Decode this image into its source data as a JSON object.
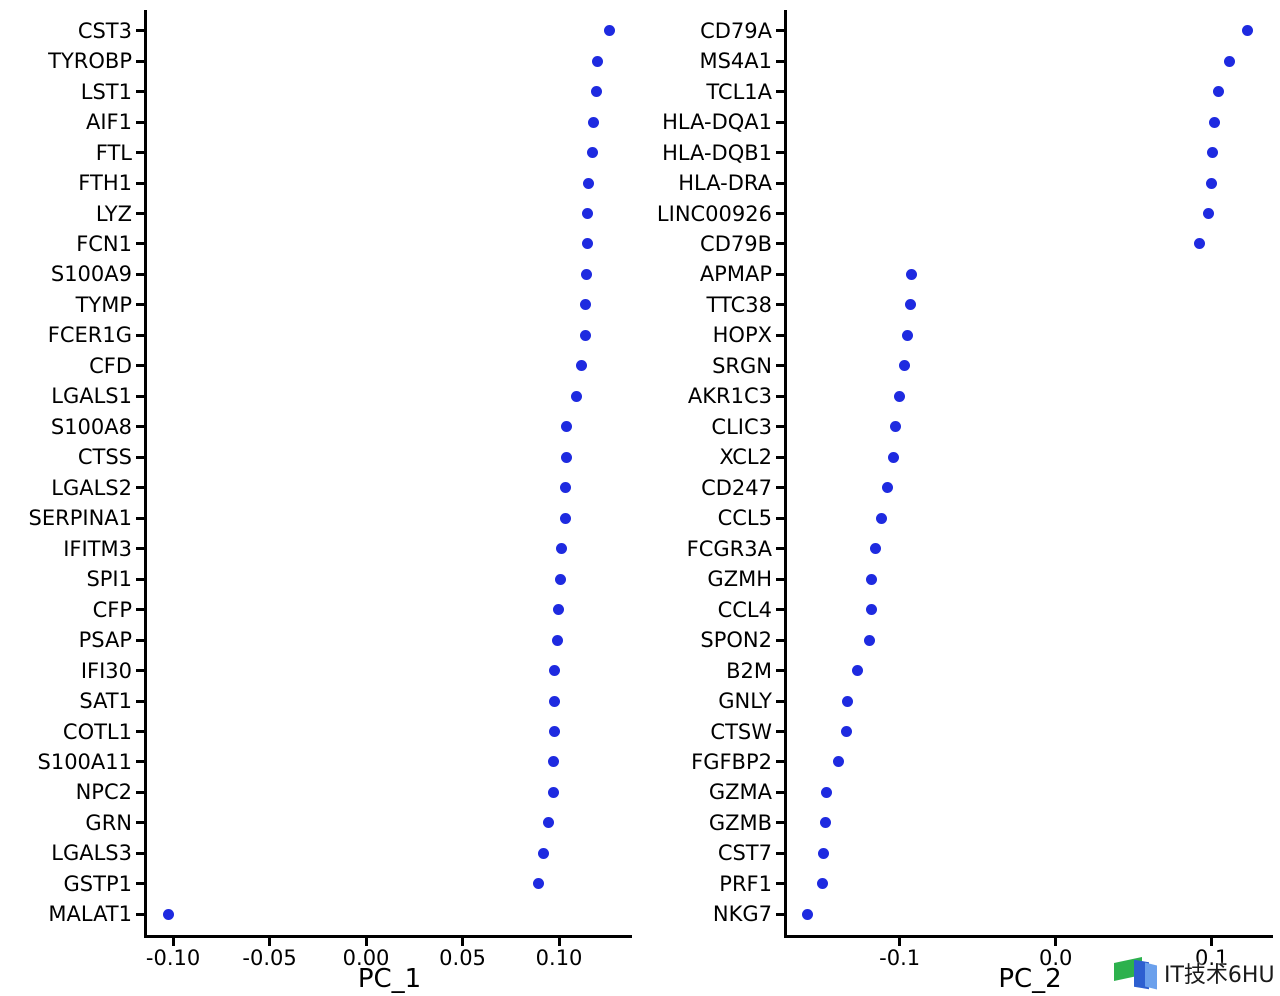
{
  "figure": {
    "background": "#ffffff",
    "text_color": "#000000",
    "dot_color": "#1e2ae0"
  },
  "watermark": {
    "text": "IT技术6HU",
    "text_color": "#1a1a1a",
    "logo_icon": "layered-flag-logo-icon",
    "logo_colors": {
      "green": "#2db14d",
      "blue": "#2d5fd0",
      "light_blue": "#6ba0ec"
    }
  },
  "chart_data": [
    {
      "type": "scatter",
      "variant": "dim-loadings-dot-plot",
      "title": "",
      "xlabel": "PC_1",
      "ylabel": "",
      "grid": false,
      "legend": null,
      "xlim": [
        -0.1135,
        0.1378
      ],
      "xticks": [
        {
          "value": -0.1,
          "label": "-0.10"
        },
        {
          "value": -0.05,
          "label": "-0.05"
        },
        {
          "value": 0.0,
          "label": "0.00"
        },
        {
          "value": 0.05,
          "label": "0.05"
        },
        {
          "value": 0.1,
          "label": "0.10"
        }
      ],
      "points": [
        {
          "gene": "CST3",
          "value": 0.126
        },
        {
          "gene": "TYROBP",
          "value": 0.12
        },
        {
          "gene": "LST1",
          "value": 0.1195
        },
        {
          "gene": "AIF1",
          "value": 0.1181
        },
        {
          "gene": "FTL",
          "value": 0.1175
        },
        {
          "gene": "FTH1",
          "value": 0.1152
        },
        {
          "gene": "LYZ",
          "value": 0.115
        },
        {
          "gene": "FCN1",
          "value": 0.1147
        },
        {
          "gene": "S100A9",
          "value": 0.1143
        },
        {
          "gene": "TYMP",
          "value": 0.1137
        },
        {
          "gene": "FCER1G",
          "value": 0.1136
        },
        {
          "gene": "CFD",
          "value": 0.1114
        },
        {
          "gene": "LGALS1",
          "value": 0.109
        },
        {
          "gene": "S100A8",
          "value": 0.1038
        },
        {
          "gene": "CTSS",
          "value": 0.1037
        },
        {
          "gene": "LGALS2",
          "value": 0.1036
        },
        {
          "gene": "SERPINA1",
          "value": 0.1035
        },
        {
          "gene": "IFITM3",
          "value": 0.1014
        },
        {
          "gene": "SPI1",
          "value": 0.101
        },
        {
          "gene": "CFP",
          "value": 0.0995
        },
        {
          "gene": "PSAP",
          "value": 0.0993
        },
        {
          "gene": "IFI30",
          "value": 0.0979
        },
        {
          "gene": "SAT1",
          "value": 0.0978
        },
        {
          "gene": "COTL1",
          "value": 0.0974
        },
        {
          "gene": "S100A11",
          "value": 0.0971
        },
        {
          "gene": "NPC2",
          "value": 0.097
        },
        {
          "gene": "GRN",
          "value": 0.0945
        },
        {
          "gene": "LGALS3",
          "value": 0.0919
        },
        {
          "gene": "GSTP1",
          "value": 0.0893
        },
        {
          "gene": "MALAT1",
          "value": -0.1024
        }
      ]
    },
    {
      "type": "scatter",
      "variant": "dim-loadings-dot-plot",
      "title": "",
      "xlabel": "PC_2",
      "ylabel": "",
      "grid": false,
      "legend": null,
      "xlim": [
        -0.1722,
        0.1393
      ],
      "xticks": [
        {
          "value": -0.1,
          "label": "-0.1"
        },
        {
          "value": 0.0,
          "label": "0.0"
        },
        {
          "value": 0.1,
          "label": "0.1"
        }
      ],
      "points": [
        {
          "gene": "CD79A",
          "value": 0.123
        },
        {
          "gene": "MS4A1",
          "value": 0.1113
        },
        {
          "gene": "TCL1A",
          "value": 0.1045
        },
        {
          "gene": "HLA-DQA1",
          "value": 0.1021
        },
        {
          "gene": "HLA-DQB1",
          "value": 0.1008
        },
        {
          "gene": "HLA-DRA",
          "value": 0.0997
        },
        {
          "gene": "LINC00926",
          "value": 0.0978
        },
        {
          "gene": "CD79B",
          "value": 0.0919
        },
        {
          "gene": "APMAP",
          "value": -0.0921
        },
        {
          "gene": "TTC38",
          "value": -0.093
        },
        {
          "gene": "HOPX",
          "value": -0.0951
        },
        {
          "gene": "SRGN",
          "value": -0.0966
        },
        {
          "gene": "AKR1C3",
          "value": -0.1004
        },
        {
          "gene": "CLIC3",
          "value": -0.1024
        },
        {
          "gene": "XCL2",
          "value": -0.1041
        },
        {
          "gene": "CD247",
          "value": -0.1079
        },
        {
          "gene": "CCL5",
          "value": -0.1118
        },
        {
          "gene": "FCGR3A",
          "value": -0.1156
        },
        {
          "gene": "GZMH",
          "value": -0.1178
        },
        {
          "gene": "CCL4",
          "value": -0.118
        },
        {
          "gene": "SPON2",
          "value": -0.1192
        },
        {
          "gene": "B2M",
          "value": -0.1272
        },
        {
          "gene": "GNLY",
          "value": -0.1333
        },
        {
          "gene": "CTSW",
          "value": -0.134
        },
        {
          "gene": "FGFBP2",
          "value": -0.1389
        },
        {
          "gene": "GZMA",
          "value": -0.1472
        },
        {
          "gene": "GZMB",
          "value": -0.1477
        },
        {
          "gene": "CST7",
          "value": -0.149
        },
        {
          "gene": "PRF1",
          "value": -0.1494
        },
        {
          "gene": "NKG7",
          "value": -0.159
        }
      ]
    }
  ]
}
